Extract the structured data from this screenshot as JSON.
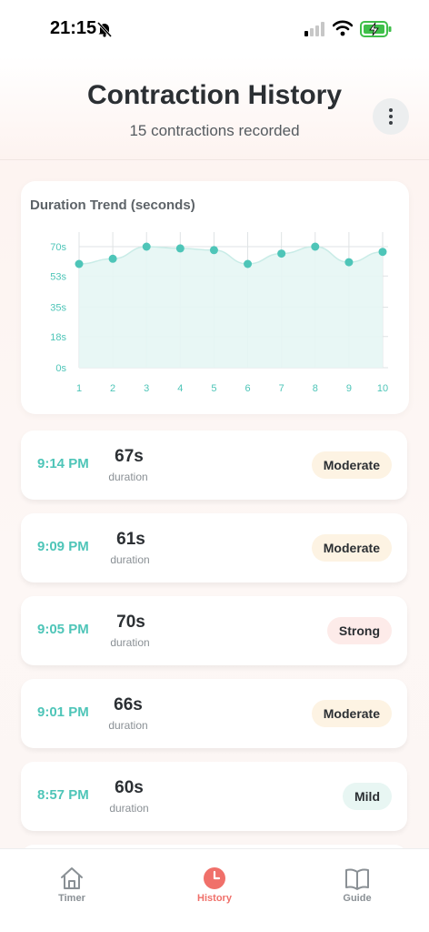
{
  "status_bar": {
    "time": "21:15"
  },
  "header": {
    "title": "Contraction History",
    "subtitle": "15 contractions recorded"
  },
  "chart": {
    "title": "Duration Trend (seconds)"
  },
  "chart_data": {
    "type": "area",
    "title": "Duration Trend (seconds)",
    "x": [
      "1",
      "2",
      "3",
      "4",
      "5",
      "6",
      "7",
      "8",
      "9",
      "10"
    ],
    "values": [
      60,
      63,
      70,
      69,
      68,
      60,
      66,
      70,
      61,
      67
    ],
    "y_ticks": [
      "70s",
      "53s",
      "35s",
      "18s",
      "0s"
    ],
    "y_tick_values": [
      70,
      53,
      35,
      18,
      0
    ],
    "ylim": [
      0,
      70
    ],
    "grid": true,
    "colors": {
      "line": "#4ec5b8",
      "fill": "#e6f6f4",
      "grid": "#dfe3e5"
    }
  },
  "entries": [
    {
      "time": "9:14 PM",
      "duration": "67s",
      "duration_label": "duration",
      "intensity": "Moderate",
      "level": "moderate"
    },
    {
      "time": "9:09 PM",
      "duration": "61s",
      "duration_label": "duration",
      "intensity": "Moderate",
      "level": "moderate"
    },
    {
      "time": "9:05 PM",
      "duration": "70s",
      "duration_label": "duration",
      "intensity": "Strong",
      "level": "strong"
    },
    {
      "time": "9:01 PM",
      "duration": "66s",
      "duration_label": "duration",
      "intensity": "Moderate",
      "level": "moderate"
    },
    {
      "time": "8:57 PM",
      "duration": "60s",
      "duration_label": "duration",
      "intensity": "Mild",
      "level": "mild"
    }
  ],
  "tabs": [
    {
      "label": "Timer",
      "icon": "home-icon",
      "active": false
    },
    {
      "label": "History",
      "icon": "clock-icon",
      "active": true
    },
    {
      "label": "Guide",
      "icon": "book-icon",
      "active": false
    }
  ],
  "colors": {
    "accent": "#4ec5b8",
    "active_tab": "#f0706a"
  }
}
